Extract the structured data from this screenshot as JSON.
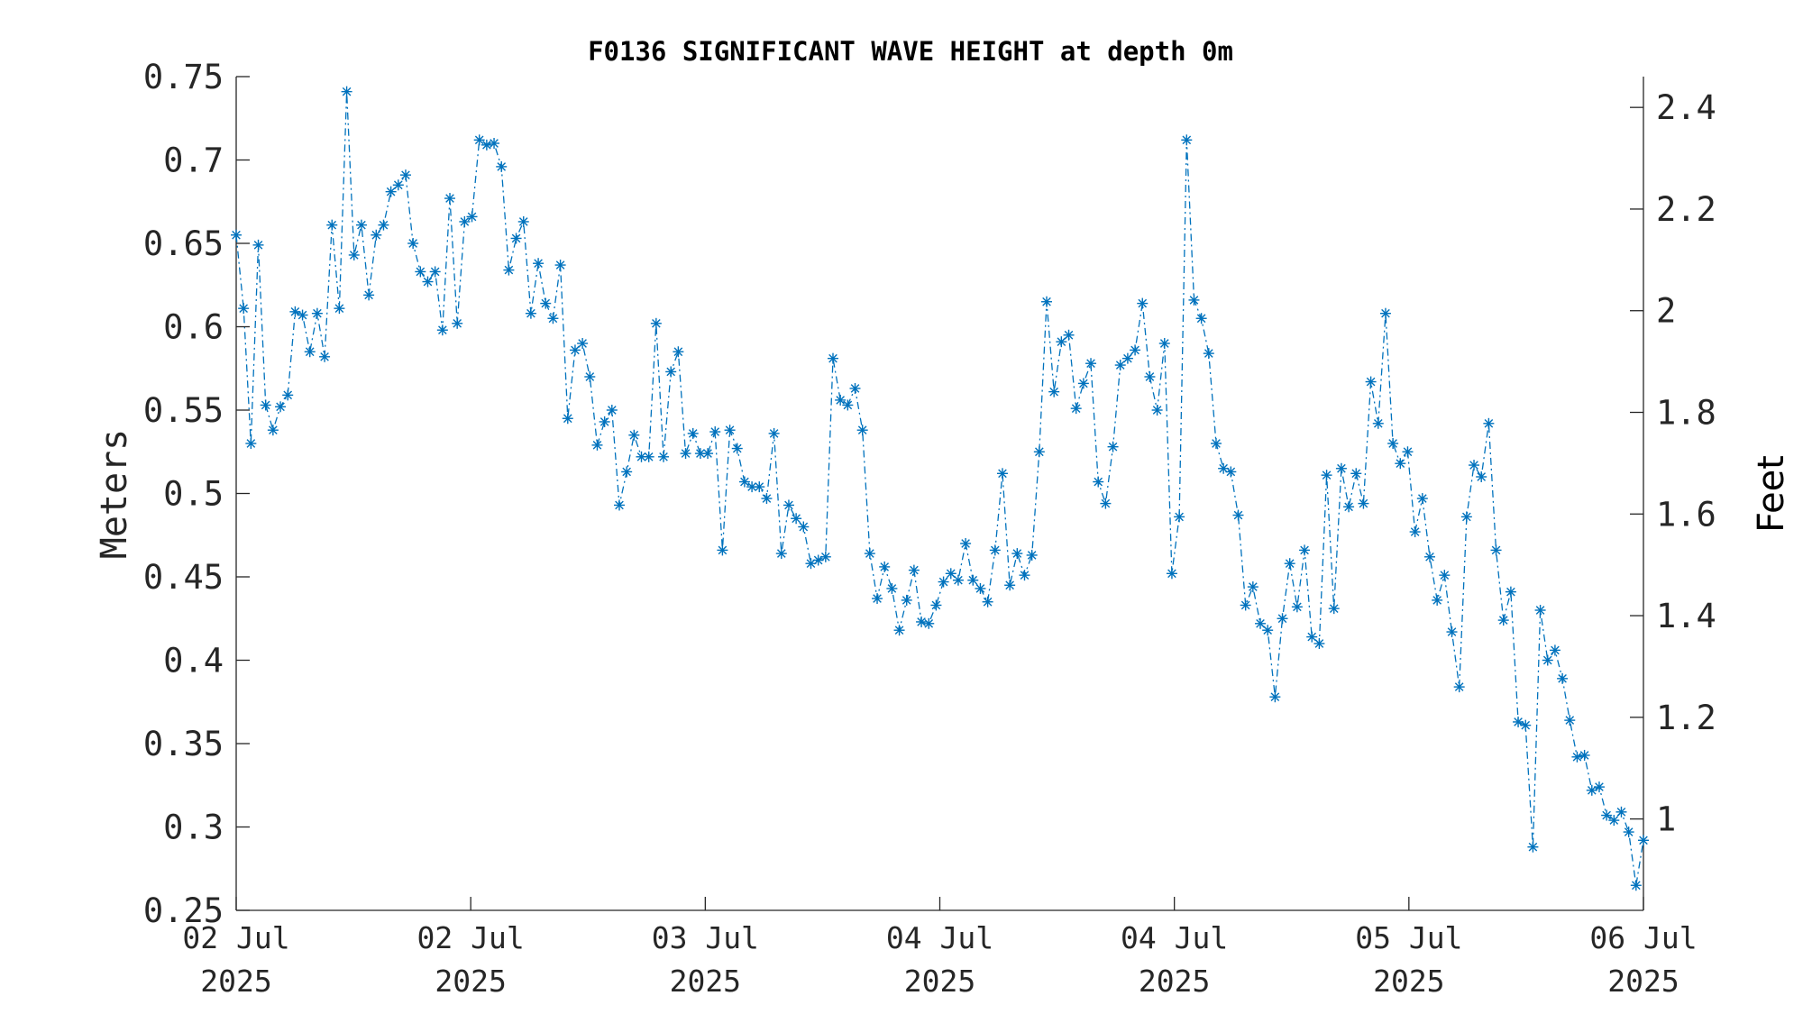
{
  "chart_data": {
    "type": "line",
    "title": "F0136 SIGNIFICANT WAVE HEIGHT at depth 0m",
    "ylabel": "Meters",
    "ylabel_right": "Feet",
    "ylim": [
      0.25,
      0.75
    ],
    "ylim_right_feet": [
      0.8202,
      2.4606
    ],
    "yticks": [
      "0.25",
      "0.3",
      "0.35",
      "0.4",
      "0.45",
      "0.5",
      "0.55",
      "0.6",
      "0.65",
      "0.7",
      "0.75"
    ],
    "yticks_right": [
      "1",
      "1.2",
      "1.4",
      "1.6",
      "1.8",
      "2",
      "2.2",
      "2.4"
    ],
    "xtick_labels": [
      {
        "date": "02 Jul",
        "year": "2025"
      },
      {
        "date": "02 Jul",
        "year": "2025"
      },
      {
        "date": "03 Jul",
        "year": "2025"
      },
      {
        "date": "04 Jul",
        "year": "2025"
      },
      {
        "date": "04 Jul",
        "year": "2025"
      },
      {
        "date": "05 Jul",
        "year": "2025"
      },
      {
        "date": "06 Jul",
        "year": "2025"
      }
    ],
    "grid": false,
    "line_style": "dash-dot",
    "marker": "asterisk",
    "color": "#0072BD",
    "series": [
      {
        "values": [
          0.655,
          0.611,
          0.53,
          0.649,
          0.553,
          0.538,
          0.552,
          0.559,
          0.609,
          0.607,
          0.585,
          0.608,
          0.582,
          0.661,
          0.611,
          0.741,
          0.643,
          0.661,
          0.619,
          0.655,
          0.661,
          0.681,
          0.685,
          0.691,
          0.65,
          0.633,
          0.627,
          0.633,
          0.598,
          0.677,
          0.602,
          0.663,
          0.666,
          0.712,
          0.709,
          0.71,
          0.696,
          0.634,
          0.653,
          0.663,
          0.608,
          0.638,
          0.614,
          0.605,
          0.637,
          0.545,
          0.586,
          0.59,
          0.57,
          0.529,
          0.543,
          0.55,
          0.493,
          0.513,
          0.535,
          0.522,
          0.522,
          0.602,
          0.522,
          0.573,
          0.585,
          0.524,
          0.536,
          0.524,
          0.524,
          0.537,
          0.466,
          0.538,
          0.527,
          0.507,
          0.504,
          0.504,
          0.497,
          0.536,
          0.464,
          0.493,
          0.485,
          0.48,
          0.458,
          0.46,
          0.462,
          0.581,
          0.556,
          0.553,
          0.563,
          0.538,
          0.464,
          0.437,
          0.456,
          0.443,
          0.418,
          0.436,
          0.454,
          0.423,
          0.422,
          0.433,
          0.447,
          0.452,
          0.448,
          0.47,
          0.448,
          0.443,
          0.435,
          0.466,
          0.512,
          0.445,
          0.464,
          0.451,
          0.463,
          0.525,
          0.615,
          0.561,
          0.591,
          0.595,
          0.551,
          0.566,
          0.578,
          0.507,
          0.494,
          0.528,
          0.577,
          0.581,
          0.586,
          0.614,
          0.57,
          0.55,
          0.59,
          0.452,
          0.486,
          0.712,
          0.616,
          0.605,
          0.584,
          0.53,
          0.515,
          0.513,
          0.487,
          0.433,
          0.444,
          0.422,
          0.418,
          0.378,
          0.425,
          0.458,
          0.432,
          0.466,
          0.414,
          0.41,
          0.511,
          0.431,
          0.515,
          0.492,
          0.512,
          0.494,
          0.567,
          0.542,
          0.608,
          0.53,
          0.518,
          0.525,
          0.477,
          0.497,
          0.462,
          0.436,
          0.451,
          0.417,
          0.384,
          0.486,
          0.517,
          0.51,
          0.542,
          0.466,
          0.424,
          0.441,
          0.363,
          0.361,
          0.288,
          0.43,
          0.4,
          0.406,
          0.389,
          0.364,
          0.342,
          0.343,
          0.322,
          0.324,
          0.307,
          0.304,
          0.309,
          0.297,
          0.265,
          0.292
        ]
      }
    ]
  }
}
